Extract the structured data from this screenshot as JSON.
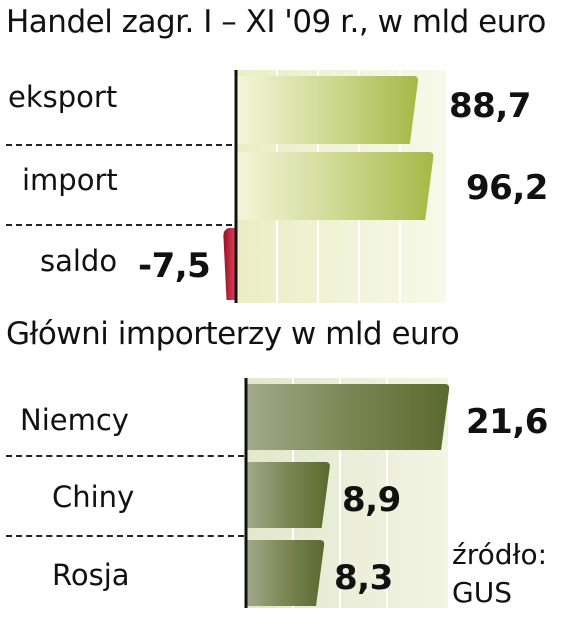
{
  "chart_data": [
    {
      "type": "bar",
      "title": "Handel zagr. I – XI '09 r., w mld euro",
      "categories": [
        "eksport",
        "import",
        "saldo"
      ],
      "values": [
        88.7,
        96.2,
        -7.5
      ],
      "value_labels": [
        "88,7",
        "96,2",
        "-7,5"
      ],
      "orientation": "horizontal",
      "grid": true,
      "colors": {
        "positive": "#a9bb4e",
        "negative": "#c81e3c",
        "background": "#eef2cf"
      }
    },
    {
      "type": "bar",
      "title": "Główni importerzy  w mld euro",
      "categories": [
        "Niemcy",
        "Chiny",
        "Rosja"
      ],
      "values": [
        21.6,
        8.9,
        8.3
      ],
      "value_labels": [
        "21,6",
        "8,9",
        "8,3"
      ],
      "orientation": "horizontal",
      "grid": true,
      "colors": {
        "bar": "#5f6e3a",
        "background": "#e6ead0"
      }
    }
  ],
  "source": {
    "line1": "źródło:",
    "line2": "GUS"
  }
}
